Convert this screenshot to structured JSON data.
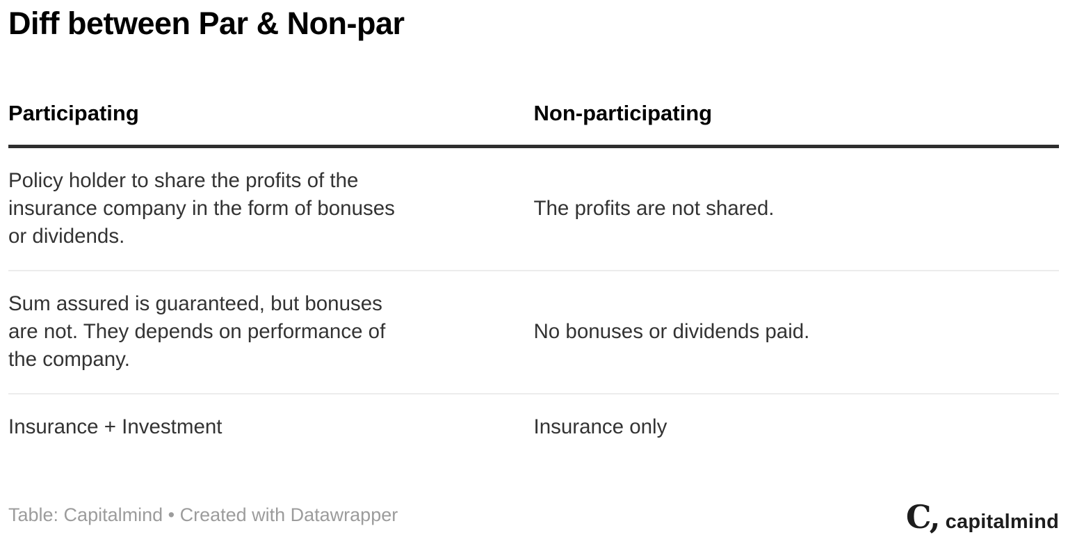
{
  "chart_data": {
    "type": "table",
    "title": "Diff between Par & Non-par",
    "columns": [
      "Participating",
      "Non-participating"
    ],
    "rows": [
      [
        "Policy holder to share the profits of the\ninsurance company in the form of bonuses\nor dividends.",
        "The profits are not shared."
      ],
      [
        "Sum assured is guaranteed, but bonuses\nare not. They depends on performance of\nthe company.",
        "No bonuses or dividends paid."
      ],
      [
        "Insurance + Investment",
        "Insurance only"
      ]
    ],
    "footer": "Table: Capitalmind • Created with Datawrapper"
  },
  "logo": {
    "mark": "C,",
    "text": "capitalmind"
  },
  "colors": {
    "background": "#ffffff",
    "title_text": "#000000",
    "header_text": "#000000",
    "body_text": "#333333",
    "header_rule": "#2e2e2e",
    "row_divider": "#ececec",
    "attribution_text": "#9c9c9c",
    "logo": "#1d1d1d"
  }
}
